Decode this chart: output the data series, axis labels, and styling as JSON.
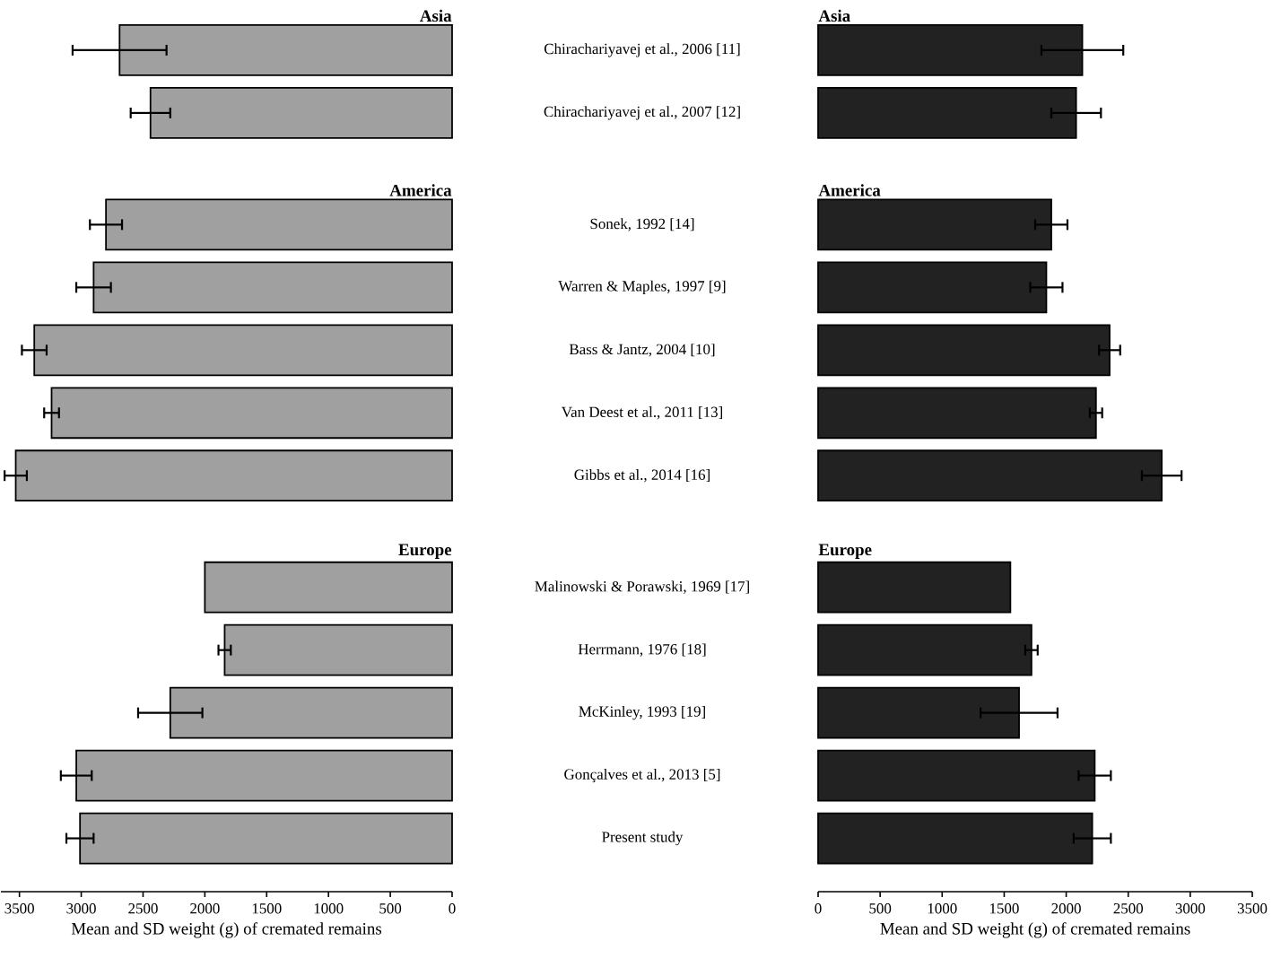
{
  "chart_data": [
    {
      "type": "bar",
      "orientation": "horizontal",
      "color": "#a0a0a0",
      "categories": [
        "Chirachariyavej et al., 2006 [11]",
        "Chirachariyavej et al., 2007 [12]",
        null,
        "Sonek, 1992 [14]",
        "Warren & Maples, 1997 [9]",
        "Bass & Jantz, 2004 [10]",
        "Van Deest et al., 2011 [13]",
        "Gibbs et al., 2014 [16]",
        null,
        "Malinowski & Porawski, 1969 [17]",
        "Herrmann, 1976 [18]",
        "McKinley, 1993 [19]",
        "Gonçalves et al., 2013 [5]",
        "Present study"
      ],
      "values": [
        2690,
        2440,
        null,
        2800,
        2900,
        3380,
        3240,
        3530,
        null,
        2000,
        1840,
        2280,
        3040,
        3010
      ],
      "errors": [
        380,
        160,
        null,
        130,
        140,
        100,
        60,
        90,
        null,
        null,
        50,
        260,
        125,
        110
      ],
      "xlim": [
        3650,
        0
      ],
      "xticks": [
        0,
        500,
        1000,
        1500,
        2000,
        2500,
        3000,
        3500
      ],
      "xlabel": "Mean and SD weight (g) of cremated remains",
      "annotations": [
        "Asia",
        "America",
        "Europe"
      ]
    },
    {
      "type": "bar",
      "orientation": "horizontal",
      "color": "#222222",
      "tick_labels": "x",
      "categories": [
        null,
        null,
        null,
        null,
        null,
        null,
        null,
        null,
        null,
        null,
        null,
        null,
        null,
        null
      ],
      "values": [
        2130,
        2080,
        null,
        1880,
        1840,
        2350,
        2240,
        2770,
        null,
        1550,
        1720,
        1620,
        2230,
        2210
      ],
      "errors": [
        330,
        200,
        null,
        130,
        130,
        85,
        50,
        160,
        null,
        null,
        50,
        310,
        130,
        150
      ],
      "xlim": [
        0,
        3500
      ],
      "xticks": [
        0,
        500,
        1000,
        1500,
        2000,
        2500,
        3000,
        3500
      ],
      "xlabel": "Mean and SD weight (g) of cremated remains",
      "annotations": [
        "Asia",
        "America",
        "Europe"
      ]
    }
  ]
}
